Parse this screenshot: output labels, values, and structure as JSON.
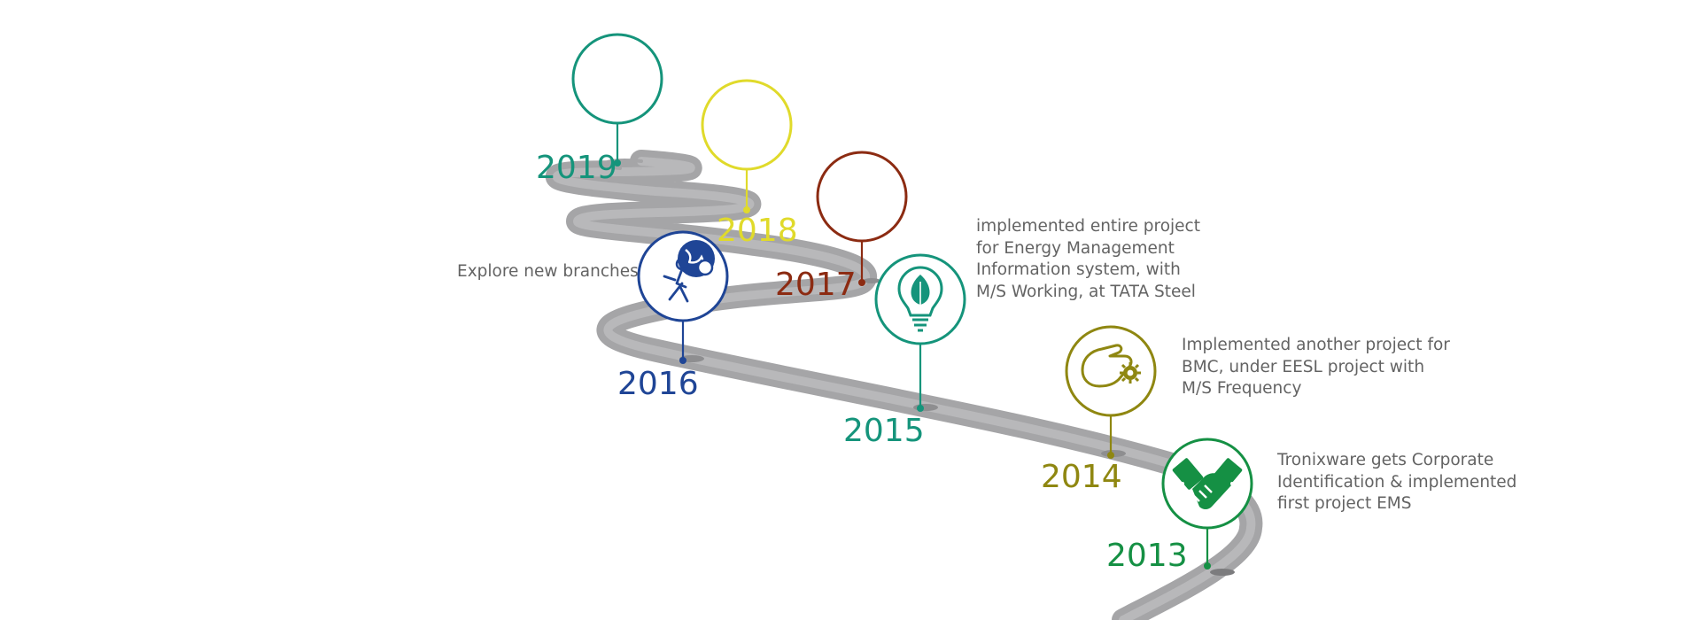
{
  "colors": {
    "road": "#a5a5a7",
    "road_edge": "#8e8e90",
    "c2019": "#15947b",
    "c2018": "#e0da2b",
    "c2017": "#8c2b12",
    "c2016": "#1f4596",
    "c2015": "#15947b",
    "c2014": "#8f8711",
    "c2013": "#159044",
    "text": "#636363"
  },
  "milestones": [
    {
      "year": "2019",
      "icon": "empty-circle-icon",
      "description": []
    },
    {
      "year": "2018",
      "icon": "empty-circle-icon",
      "description": []
    },
    {
      "year": "2017",
      "icon": "empty-circle-icon",
      "description": []
    },
    {
      "year": "2016",
      "icon": "globe-explorer-icon",
      "description": [
        "Explore new branches"
      ]
    },
    {
      "year": "2015",
      "icon": "leaf-bulb-icon",
      "description": [
        "implemented entire project",
        "for Energy Management",
        "Information system, with",
        "M/S Working, at TATA Steel"
      ]
    },
    {
      "year": "2014",
      "icon": "hand-gear-icon",
      "description": [
        "Implemented another project for",
        "BMC, under EESL project with",
        "M/S Frequency"
      ]
    },
    {
      "year": "2013",
      "icon": "handshake-icon",
      "description": [
        "Tronixware gets Corporate",
        "Identification & implemented",
        "first project EMS"
      ]
    }
  ]
}
